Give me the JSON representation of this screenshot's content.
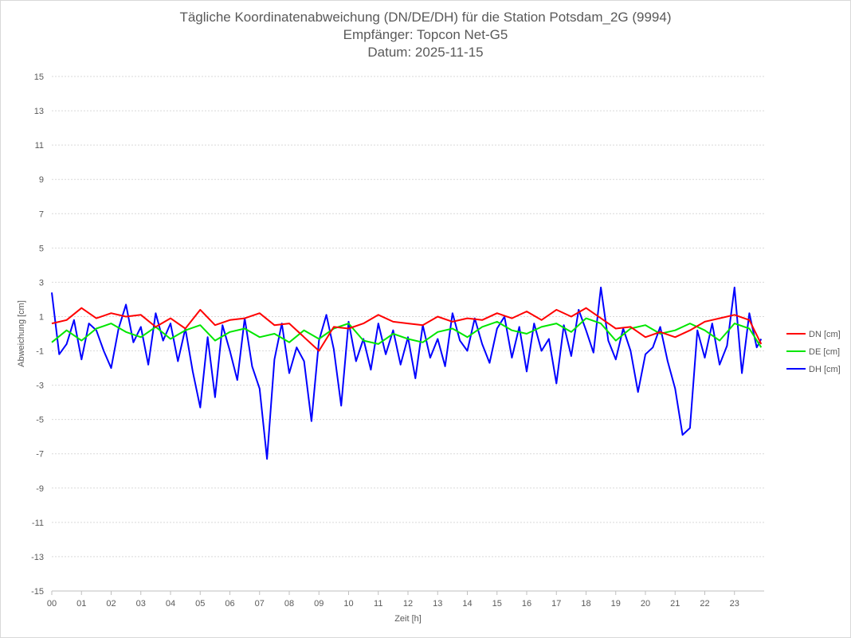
{
  "chart_data": {
    "type": "line",
    "title": "Tägliche Koordinatenabweichung (DN/DE/DH) für die Station Potsdam_2G (9994)",
    "subtitle_1": "Empfänger: Topcon Net-G5",
    "subtitle_2": "Datum: 2025-11-15",
    "xlabel": "Zeit [h]",
    "ylabel": "Abweichung [cm]",
    "xlim": [
      0,
      24
    ],
    "ylim": [
      -15,
      15
    ],
    "x_ticks": [
      "00",
      "01",
      "02",
      "03",
      "04",
      "05",
      "06",
      "07",
      "08",
      "09",
      "10",
      "11",
      "12",
      "13",
      "14",
      "15",
      "16",
      "17",
      "18",
      "19",
      "20",
      "21",
      "22",
      "23"
    ],
    "y_ticks": [
      15,
      13,
      11,
      9,
      7,
      5,
      3,
      1,
      -1,
      -3,
      -5,
      -7,
      -9,
      -11,
      -13,
      -15
    ],
    "grid": "horizontal-dotted",
    "legend_position": "right",
    "series": [
      {
        "name": "DN [cm]",
        "color": "#ff0000",
        "x": [
          0,
          0.5,
          1,
          1.5,
          2,
          2.5,
          3,
          3.5,
          4,
          4.5,
          5,
          5.5,
          6,
          6.5,
          7,
          7.5,
          8,
          8.5,
          9,
          9.5,
          10,
          10.5,
          11,
          11.5,
          12,
          12.5,
          13,
          13.5,
          14,
          14.5,
          15,
          15.5,
          16,
          16.5,
          17,
          17.5,
          18,
          18.5,
          19,
          19.5,
          20,
          20.5,
          21,
          21.5,
          22,
          22.5,
          23,
          23.5,
          23.9
        ],
        "values": [
          0.6,
          0.8,
          1.5,
          0.9,
          1.2,
          1.0,
          1.1,
          0.4,
          0.9,
          0.3,
          1.4,
          0.5,
          0.8,
          0.9,
          1.2,
          0.5,
          0.6,
          -0.2,
          -1.0,
          0.4,
          0.3,
          0.6,
          1.1,
          0.7,
          0.6,
          0.5,
          1.0,
          0.7,
          0.9,
          0.8,
          1.2,
          0.9,
          1.3,
          0.8,
          1.4,
          1.0,
          1.5,
          0.9,
          0.3,
          0.4,
          -0.2,
          0.1,
          -0.2,
          0.2,
          0.7,
          0.9,
          1.1,
          0.8,
          -0.6
        ]
      },
      {
        "name": "DE [cm]",
        "color": "#00e600",
        "x": [
          0,
          0.5,
          1,
          1.5,
          2,
          2.5,
          3,
          3.5,
          4,
          4.5,
          5,
          5.5,
          6,
          6.5,
          7,
          7.5,
          8,
          8.5,
          9,
          9.5,
          10,
          10.5,
          11,
          11.5,
          12,
          12.5,
          13,
          13.5,
          14,
          14.5,
          15,
          15.5,
          16,
          16.5,
          17,
          17.5,
          18,
          18.5,
          19,
          19.5,
          20,
          20.5,
          21,
          21.5,
          22,
          22.5,
          23,
          23.5,
          23.9
        ],
        "values": [
          -0.5,
          0.2,
          -0.4,
          0.3,
          0.6,
          0.1,
          -0.2,
          0.4,
          -0.3,
          0.2,
          0.5,
          -0.4,
          0.1,
          0.3,
          -0.2,
          0.0,
          -0.5,
          0.2,
          -0.3,
          0.3,
          0.6,
          -0.4,
          -0.6,
          0.0,
          -0.3,
          -0.5,
          0.1,
          0.3,
          -0.2,
          0.4,
          0.7,
          0.2,
          0.0,
          0.4,
          0.6,
          0.1,
          0.9,
          0.6,
          -0.4,
          0.3,
          0.5,
          0.0,
          0.2,
          0.6,
          0.2,
          -0.4,
          0.6,
          0.3,
          -0.8
        ]
      },
      {
        "name": "DH [cm]",
        "color": "#0000ff",
        "x": [
          0,
          0.25,
          0.5,
          0.75,
          1,
          1.25,
          1.5,
          1.75,
          2,
          2.25,
          2.5,
          2.75,
          3,
          3.25,
          3.5,
          3.75,
          4,
          4.25,
          4.5,
          4.75,
          5,
          5.25,
          5.5,
          5.75,
          6,
          6.25,
          6.5,
          6.75,
          7,
          7.25,
          7.5,
          7.75,
          8,
          8.25,
          8.5,
          8.75,
          9,
          9.25,
          9.5,
          9.75,
          10,
          10.25,
          10.5,
          10.75,
          11,
          11.25,
          11.5,
          11.75,
          12,
          12.25,
          12.5,
          12.75,
          13,
          13.25,
          13.5,
          13.75,
          14,
          14.25,
          14.5,
          14.75,
          15,
          15.25,
          15.5,
          15.75,
          16,
          16.25,
          16.5,
          16.75,
          17,
          17.25,
          17.5,
          17.75,
          18,
          18.25,
          18.5,
          18.75,
          19,
          19.25,
          19.5,
          19.75,
          20,
          20.25,
          20.5,
          20.75,
          21,
          21.25,
          21.5,
          21.75,
          22,
          22.25,
          22.5,
          22.75,
          23,
          23.25,
          23.5,
          23.75,
          23.9
        ],
        "values": [
          2.4,
          -1.2,
          -0.6,
          0.8,
          -1.5,
          0.6,
          0.2,
          -1.0,
          -2.0,
          0.3,
          1.7,
          -0.5,
          0.4,
          -1.8,
          1.2,
          -0.4,
          0.6,
          -1.6,
          0.3,
          -2.2,
          -4.3,
          -0.2,
          -3.7,
          0.5,
          -1.0,
          -2.7,
          0.9,
          -1.9,
          -3.2,
          -7.3,
          -1.5,
          0.6,
          -2.3,
          -0.8,
          -1.6,
          -5.1,
          -0.4,
          1.1,
          -0.9,
          -4.2,
          0.7,
          -1.6,
          -0.3,
          -2.1,
          0.6,
          -1.2,
          0.2,
          -1.8,
          -0.2,
          -2.6,
          0.5,
          -1.4,
          -0.3,
          -1.9,
          1.2,
          -0.4,
          -1.0,
          0.9,
          -0.6,
          -1.7,
          0.3,
          1.0,
          -1.4,
          0.4,
          -2.2,
          0.6,
          -1.0,
          -0.3,
          -2.9,
          0.5,
          -1.3,
          1.4,
          0.2,
          -1.1,
          2.7,
          -0.4,
          -1.5,
          0.3,
          -1.0,
          -3.4,
          -1.2,
          -0.8,
          0.4,
          -1.6,
          -3.2,
          -5.9,
          -5.5,
          0.2,
          -1.4,
          0.6,
          -1.8,
          -0.7,
          2.7,
          -2.3,
          1.2,
          -0.8,
          -0.3
        ]
      }
    ]
  }
}
